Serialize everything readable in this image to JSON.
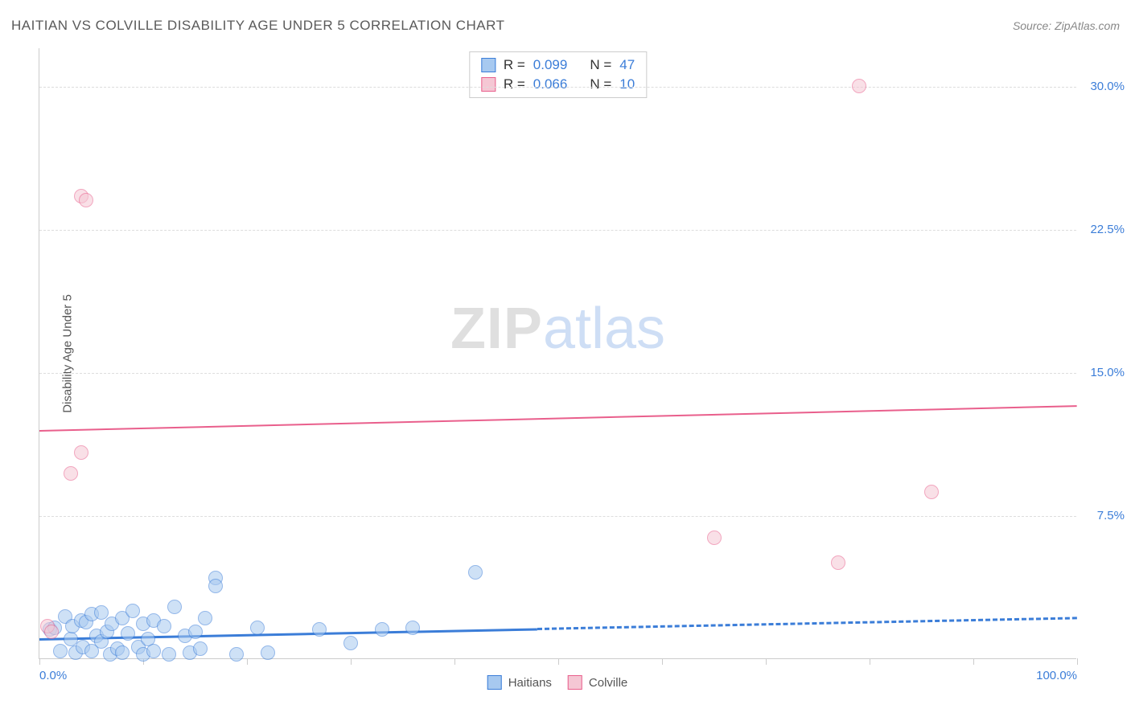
{
  "header": {
    "title": "HAITIAN VS COLVILLE DISABILITY AGE UNDER 5 CORRELATION CHART",
    "source": "Source: ZipAtlas.com"
  },
  "chart": {
    "type": "scatter",
    "yaxis_label": "Disability Age Under 5",
    "xlim": [
      0,
      100
    ],
    "ylim": [
      0,
      32
    ],
    "yticks": [
      7.5,
      15.0,
      22.5,
      30.0
    ],
    "ytick_labels": [
      "7.5%",
      "15.0%",
      "22.5%",
      "30.0%"
    ],
    "xtick_positions": [
      0,
      10,
      20,
      30,
      40,
      50,
      60,
      70,
      80,
      90,
      100
    ],
    "xtick_labels_shown": {
      "0": "0.0%",
      "100": "100.0%"
    },
    "background_color": "#ffffff",
    "grid_color": "#dddddd",
    "axis_color": "#cccccc",
    "label_color": "#3b7dd8",
    "point_radius": 9,
    "point_opacity": 0.55,
    "watermark": {
      "part1": "ZIP",
      "part2": "atlas"
    }
  },
  "series": {
    "haitians": {
      "label": "Haitians",
      "fill": "#a7c9f0",
      "stroke": "#3b7dd8",
      "R": "0.099",
      "N": "47",
      "regression": {
        "y_at_x0": 1.1,
        "y_at_x100": 2.2,
        "solid_until_x": 48,
        "width": 3
      },
      "points": [
        [
          1,
          1.5
        ],
        [
          1.5,
          1.6
        ],
        [
          2,
          0.4
        ],
        [
          2.5,
          2.2
        ],
        [
          3,
          1.0
        ],
        [
          3.2,
          1.7
        ],
        [
          3.5,
          0.3
        ],
        [
          4,
          2.0
        ],
        [
          4.2,
          0.6
        ],
        [
          4.5,
          1.9
        ],
        [
          5,
          0.4
        ],
        [
          5,
          2.3
        ],
        [
          5.5,
          1.2
        ],
        [
          6,
          0.9
        ],
        [
          6,
          2.4
        ],
        [
          6.5,
          1.4
        ],
        [
          6.8,
          0.2
        ],
        [
          7,
          1.8
        ],
        [
          7.5,
          0.5
        ],
        [
          8,
          2.1
        ],
        [
          8,
          0.3
        ],
        [
          8.5,
          1.3
        ],
        [
          9,
          2.5
        ],
        [
          9.5,
          0.6
        ],
        [
          10,
          0.2
        ],
        [
          10,
          1.8
        ],
        [
          10.5,
          1.0
        ],
        [
          11,
          2.0
        ],
        [
          11,
          0.4
        ],
        [
          12,
          1.7
        ],
        [
          12.5,
          0.2
        ],
        [
          13,
          2.7
        ],
        [
          14,
          1.2
        ],
        [
          14.5,
          0.3
        ],
        [
          15,
          1.4
        ],
        [
          15.5,
          0.5
        ],
        [
          16,
          2.1
        ],
        [
          17,
          4.2
        ],
        [
          17,
          3.8
        ],
        [
          19,
          0.2
        ],
        [
          21,
          1.6
        ],
        [
          22,
          0.3
        ],
        [
          27,
          1.5
        ],
        [
          30,
          0.8
        ],
        [
          33,
          1.5
        ],
        [
          36,
          1.6
        ],
        [
          42,
          4.5
        ]
      ]
    },
    "colville": {
      "label": "Colville",
      "fill": "#f5c7d4",
      "stroke": "#e95f8c",
      "R": "0.066",
      "N": "10",
      "regression": {
        "y_at_x0": 12.0,
        "y_at_x100": 13.3,
        "solid_until_x": 100,
        "width": 2.5
      },
      "points": [
        [
          0.8,
          1.7
        ],
        [
          1.2,
          1.4
        ],
        [
          3,
          9.7
        ],
        [
          4,
          24.2
        ],
        [
          4.5,
          24.0
        ],
        [
          4,
          10.8
        ],
        [
          65,
          6.3
        ],
        [
          77,
          5.0
        ],
        [
          79,
          30.0
        ],
        [
          86,
          8.7
        ]
      ]
    }
  },
  "legend_stats": {
    "r_label": "R =",
    "n_label": "N ="
  },
  "bottom_legend": {
    "items": [
      "haitians",
      "colville"
    ]
  }
}
